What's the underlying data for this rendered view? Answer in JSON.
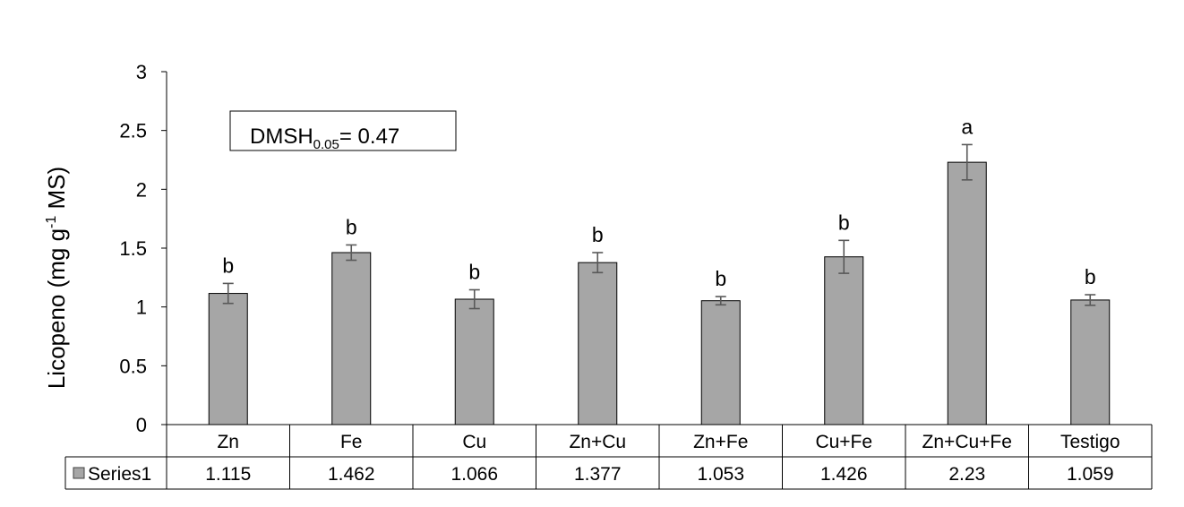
{
  "chart_data": {
    "type": "bar",
    "categories": [
      "Zn",
      "Fe",
      "Cu",
      "Zn+Cu",
      "Zn+Fe",
      "Cu+Fe",
      "Zn+Cu+Fe",
      "Testigo"
    ],
    "series": [
      {
        "name": "Series1",
        "values": [
          1.115,
          1.462,
          1.066,
          1.377,
          1.053,
          1.426,
          2.23,
          1.059
        ],
        "value_labels": [
          "1.115",
          "1.462",
          "1.066",
          "1.377",
          "1.053",
          "1.426",
          "2.23",
          "1.059"
        ],
        "error": [
          0.085,
          0.065,
          0.08,
          0.085,
          0.035,
          0.14,
          0.15,
          0.045
        ],
        "significance": [
          "b",
          "b",
          "b",
          "b",
          "b",
          "b",
          "a",
          "b"
        ],
        "color": "#A6A6A6"
      }
    ],
    "ylabel_prefix": "Licopeno (mg g",
    "ylabel_sup": "-1",
    "ylabel_suffix": " MS)",
    "ylim": [
      0,
      3
    ],
    "yticks": [
      "0",
      "0.5",
      "1",
      "1.5",
      "2",
      "2.5",
      "3"
    ],
    "annotation": {
      "prefix": "DMSH",
      "sub": "0.05",
      "suffix": "= 0.47"
    },
    "legend_placement": "data-table",
    "grid": false
  }
}
